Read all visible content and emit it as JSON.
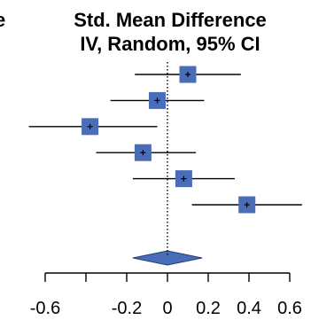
{
  "chart_data": {
    "type": "forest",
    "header": {
      "left_cut_text": "e",
      "line1": "Std. Mean Difference",
      "line2": "IV, Random, 95% CI"
    },
    "x_ticks": [
      -0.6,
      -0.4,
      -0.2,
      0,
      0.2,
      0.4,
      0.6
    ],
    "x_tick_labels": [
      "-0.6",
      "",
      "-0.2",
      "0",
      "0.2",
      "0.4",
      "0.6"
    ],
    "xlim": [
      -0.6,
      0.6
    ],
    "reference_line": 0,
    "studies": [
      {
        "estimate": 0.1,
        "lower": -0.16,
        "upper": 0.36
      },
      {
        "estimate": -0.05,
        "lower": -0.28,
        "upper": 0.18
      },
      {
        "estimate": -0.38,
        "lower": -0.68,
        "upper": -0.05
      },
      {
        "estimate": -0.12,
        "lower": -0.35,
        "upper": 0.14
      },
      {
        "estimate": 0.08,
        "lower": -0.17,
        "upper": 0.33
      },
      {
        "estimate": 0.39,
        "lower": 0.12,
        "upper": 0.66
      }
    ],
    "pooled": {
      "estimate": 0.0,
      "lower": -0.17,
      "upper": 0.17
    },
    "colors": {
      "marker": "#4a6db8",
      "line": "#000000"
    }
  }
}
